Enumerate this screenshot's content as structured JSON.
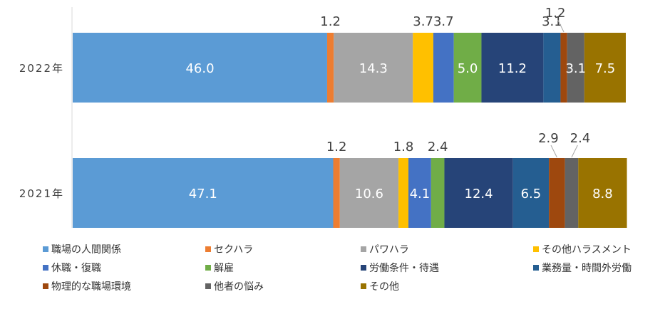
{
  "chart_data": {
    "type": "bar",
    "orientation": "horizontal",
    "stacked": true,
    "title": "",
    "xlabel": "",
    "ylabel": "",
    "xlim": [
      0,
      100
    ],
    "grid": false,
    "legend_position": "bottom",
    "categories": [
      "2022年",
      "2021年"
    ],
    "series": [
      {
        "name": "職場の人間関係",
        "color": "#5B9BD5",
        "values": [
          46.0,
          47.1
        ]
      },
      {
        "name": "セクハラ",
        "color": "#ED7D31",
        "values": [
          1.2,
          1.2
        ]
      },
      {
        "name": "パワハラ",
        "color": "#A5A5A5",
        "values": [
          14.3,
          10.6
        ]
      },
      {
        "name": "その他ハラスメント",
        "color": "#FFC000",
        "values": [
          3.7,
          1.8
        ]
      },
      {
        "name": "休職・復職",
        "color": "#4472C4",
        "values": [
          3.7,
          4.1
        ]
      },
      {
        "name": "解雇",
        "color": "#70AD47",
        "values": [
          5.0,
          2.4
        ]
      },
      {
        "name": "労働条件・待遇",
        "color": "#264478",
        "values": [
          11.2,
          12.4
        ]
      },
      {
        "name": "業務量・時間外労働",
        "color": "#255E91",
        "values": [
          3.1,
          6.5
        ]
      },
      {
        "name": "物理的な職場環境",
        "color": "#9E480E",
        "values": [
          1.2,
          2.9
        ]
      },
      {
        "name": "他者の悩み",
        "color": "#636363",
        "values": [
          3.1,
          2.4
        ]
      },
      {
        "name": "その他",
        "color": "#997300",
        "values": [
          7.5,
          8.8
        ]
      }
    ],
    "data_labels": [
      [
        {
          "text": "46.0",
          "placement": "inside"
        },
        {
          "text": "1.2",
          "placement": "above"
        },
        {
          "text": "14.3",
          "placement": "inside"
        },
        {
          "text": "3.7",
          "placement": "above"
        },
        {
          "text": "3.7",
          "placement": "above"
        },
        {
          "text": "5.0",
          "placement": "inside"
        },
        {
          "text": "11.2",
          "placement": "inside"
        },
        {
          "text": "3.1",
          "placement": "above"
        },
        {
          "text": "1.2",
          "placement": "above"
        },
        {
          "text": "3.1",
          "placement": "inside"
        },
        {
          "text": "7.5",
          "placement": "inside"
        }
      ],
      [
        {
          "text": "47.1",
          "placement": "inside"
        },
        {
          "text": "1.2",
          "placement": "above"
        },
        {
          "text": "10.6",
          "placement": "inside"
        },
        {
          "text": "1.8",
          "placement": "above"
        },
        {
          "text": "4.1",
          "placement": "inside"
        },
        {
          "text": "2.4",
          "placement": "above"
        },
        {
          "text": "12.4",
          "placement": "inside"
        },
        {
          "text": "6.5",
          "placement": "inside"
        },
        {
          "text": "2.9",
          "placement": "above"
        },
        {
          "text": "2.4",
          "placement": "above"
        },
        {
          "text": "8.8",
          "placement": "inside"
        }
      ]
    ]
  }
}
